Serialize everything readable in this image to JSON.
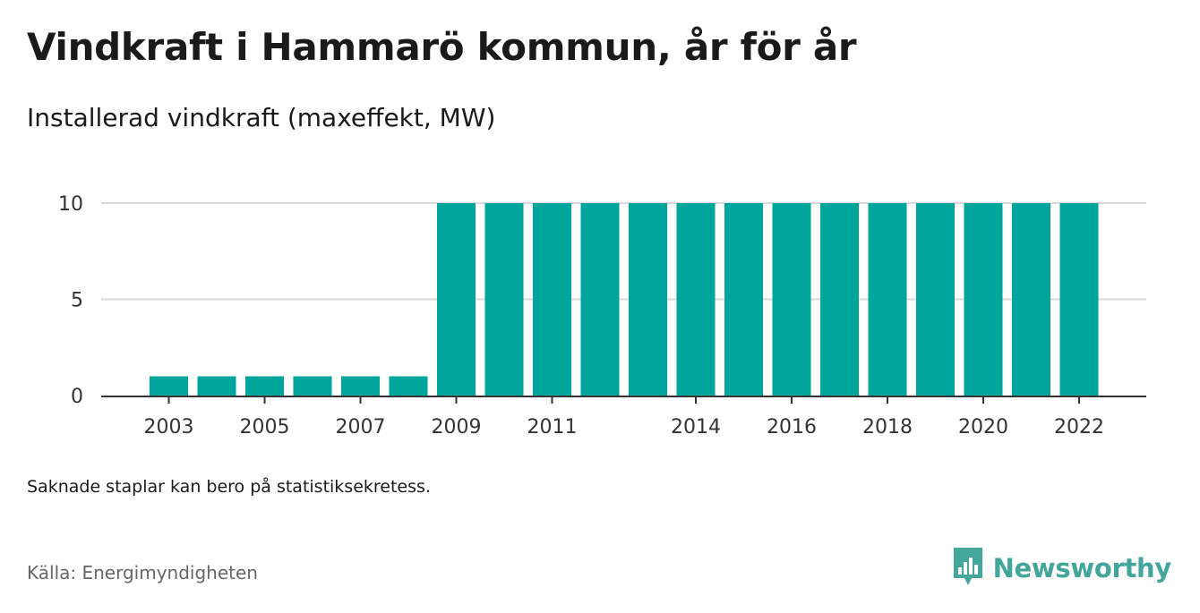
{
  "header": {
    "title": "Vindkraft i Hammarö kommun, år för år",
    "subtitle": "Installerad vindkraft (maxeffekt, MW)"
  },
  "footer": {
    "note": "Saknade staplar kan bero på statistiksekretess.",
    "source": "Källa: Energimyndigheten",
    "brand": "Newsworthy"
  },
  "colors": {
    "bar": "#00a59b",
    "grid": "#d9d9d9",
    "axis": "#333333",
    "brand": "#42a69b"
  },
  "icons": {
    "brand_logo": "bar-chart-speech-bubble-icon"
  },
  "chart_data": {
    "type": "bar",
    "categories": [
      "2003",
      "2004",
      "2005",
      "2006",
      "2007",
      "2008",
      "2009",
      "2010",
      "2011",
      "2012",
      "2013",
      "2014",
      "2015",
      "2016",
      "2017",
      "2018",
      "2019",
      "2020",
      "2021",
      "2022"
    ],
    "values": [
      1,
      1,
      1,
      1,
      1,
      1,
      10,
      10,
      10,
      10,
      10,
      10,
      10,
      10,
      10,
      10,
      10,
      10,
      10,
      10
    ],
    "x_tick_labels": [
      "2003",
      "2005",
      "2007",
      "2009",
      "2011",
      "2014",
      "2016",
      "2018",
      "2020",
      "2022"
    ],
    "y_ticks": [
      0,
      5,
      10
    ],
    "ylim": [
      0,
      10
    ],
    "title": "Vindkraft i Hammarö kommun, år för år",
    "subtitle": "Installerad vindkraft (maxeffekt, MW)",
    "xlabel": "",
    "ylabel": "",
    "grid": true,
    "legend": "none"
  }
}
